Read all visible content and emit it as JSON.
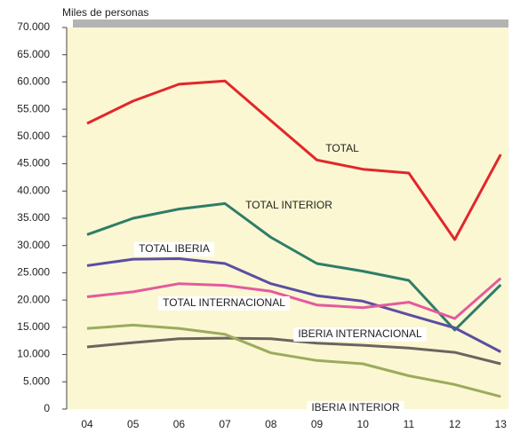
{
  "chart_data": {
    "type": "line",
    "title": "Miles de personas",
    "categories": [
      "04",
      "05",
      "06",
      "07",
      "08",
      "09",
      "10",
      "11",
      "12",
      "13"
    ],
    "ylim": [
      0,
      70000
    ],
    "yticks": [
      0,
      {
        "value": 5000,
        "label": "5.000"
      },
      {
        "value": 10000,
        "label": "10.000"
      },
      {
        "value": 15000,
        "label": "15.000"
      },
      {
        "value": 20000,
        "label": "20.000"
      },
      {
        "value": 25000,
        "label": "25.000"
      },
      {
        "value": 30000,
        "label": "30.000"
      },
      {
        "value": 35000,
        "label": "35.000"
      },
      {
        "value": 40000,
        "label": "40.000"
      },
      {
        "value": 45000,
        "label": "45.000"
      },
      {
        "value": 50000,
        "label": "50.000"
      },
      {
        "value": 55000,
        "label": "55.000"
      },
      {
        "value": 60000,
        "label": "60.000"
      },
      {
        "value": 65000,
        "label": "65.000"
      },
      {
        "value": 70000,
        "label": "70.000"
      }
    ],
    "series": [
      {
        "name": "TOTAL",
        "color": "#e3262b",
        "values": [
          52400,
          56500,
          59600,
          60200,
          52900,
          45700,
          44000,
          43300,
          31100,
          46700
        ]
      },
      {
        "name": "TOTAL INTERIOR",
        "color": "#2e7d68",
        "values": [
          32000,
          35000,
          36700,
          37700,
          31500,
          26700,
          25300,
          23600,
          14500,
          22800
        ]
      },
      {
        "name": "TOTAL IBERIA",
        "color": "#5a4ea3",
        "values": [
          26300,
          27500,
          27600,
          26700,
          23000,
          20800,
          19800,
          17300,
          14900,
          10500
        ]
      },
      {
        "name": "TOTAL INTERNACIONAL",
        "color": "#e35a9f",
        "values": [
          20600,
          21500,
          23000,
          22700,
          21600,
          19100,
          18600,
          19600,
          16600,
          24000
        ]
      },
      {
        "name": "IBERIA INTERNACIONAL",
        "color": "#6b6460",
        "values": [
          11400,
          12200,
          12900,
          13000,
          12900,
          12100,
          11700,
          11200,
          10400,
          8300
        ]
      },
      {
        "name": "IBERIA INTERIOR",
        "color": "#9aac5c",
        "values": [
          14800,
          15400,
          14800,
          13700,
          10300,
          8900,
          8300,
          6100,
          4500,
          2300
        ]
      }
    ]
  }
}
